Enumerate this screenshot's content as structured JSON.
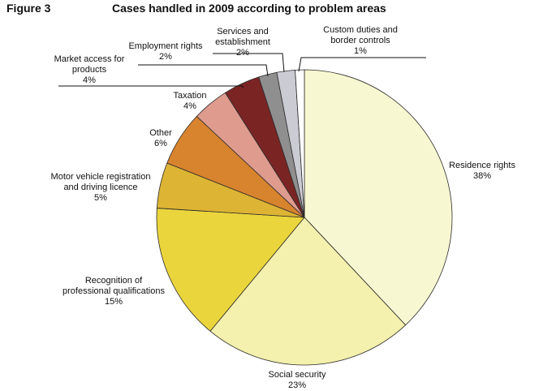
{
  "figure": {
    "label": "Figure 3",
    "title": "Cases handled in 2009 according to problem areas"
  },
  "chart_data": {
    "type": "pie",
    "title": "Cases handled in 2009 according to problem areas",
    "start": "12 o'clock",
    "direction": "clockwise",
    "legend": "none",
    "slices": [
      {
        "name": "Residence rights",
        "value": 38,
        "label": "38%",
        "color": "#f7f7d2"
      },
      {
        "name": "Social security",
        "value": 23,
        "label": "23%",
        "color": "#f4f0ad"
      },
      {
        "name": "Recognition of professional qualifications",
        "value": 15,
        "label": "15%",
        "color": "#ebd53c"
      },
      {
        "name": "Motor vehicle registration and driving licence",
        "value": 5,
        "label": "5%",
        "color": "#ddb433"
      },
      {
        "name": "Other",
        "value": 6,
        "label": "6%",
        "color": "#d8832e"
      },
      {
        "name": "Taxation",
        "value": 4,
        "label": "4%",
        "color": "#de9b8e"
      },
      {
        "name": "Market access for products",
        "value": 4,
        "label": "4%",
        "color": "#7b2424"
      },
      {
        "name": "Employment rights",
        "value": 2,
        "label": "2%",
        "color": "#8f8f8f"
      },
      {
        "name": "Services and establishment",
        "value": 2,
        "label": "2%",
        "color": "#cbcbd3"
      },
      {
        "name": "Custom duties and border controls",
        "value": 1,
        "label": "1%",
        "color": "#ffffff"
      }
    ]
  }
}
